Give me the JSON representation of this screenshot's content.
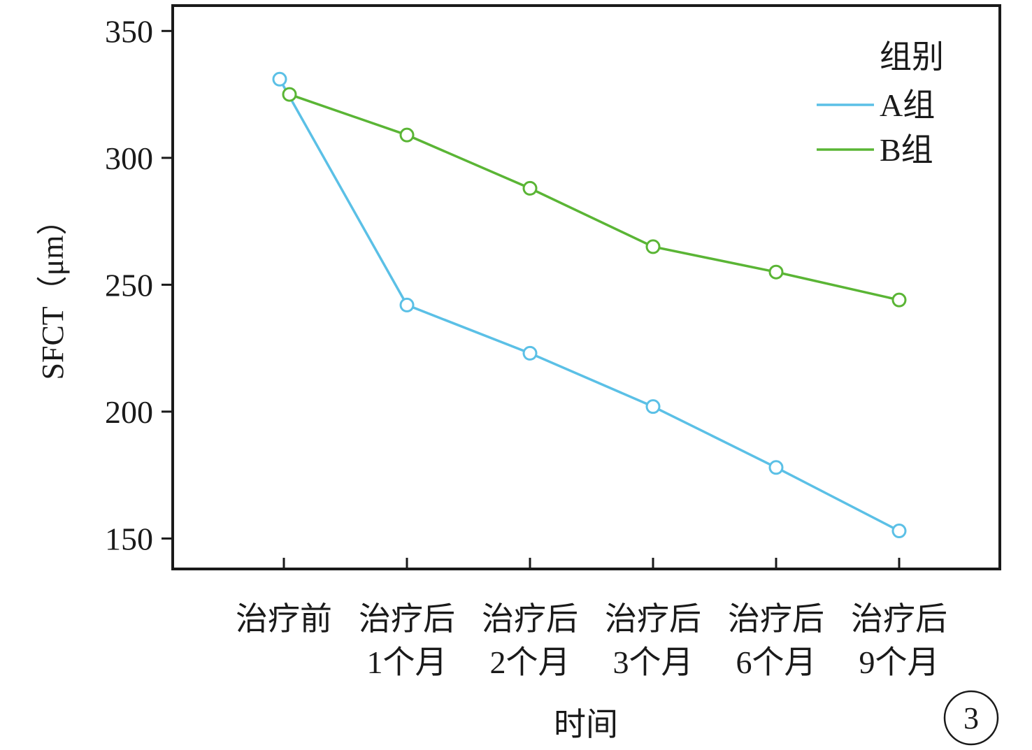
{
  "chart_data": {
    "type": "line",
    "title": "",
    "xlabel": "时间",
    "ylabel": "SFCT（μm）",
    "categories": [
      [
        "治疗前"
      ],
      [
        "治疗后",
        "1个月"
      ],
      [
        "治疗后",
        "2个月"
      ],
      [
        "治疗后",
        "3个月"
      ],
      [
        "治疗后",
        "6个月"
      ],
      [
        "治疗后",
        "9个月"
      ]
    ],
    "ylim": [
      138,
      360
    ],
    "yticks": [
      150,
      200,
      250,
      300,
      350
    ],
    "grid": false,
    "legend": {
      "title": "组别",
      "placement": "top-right"
    },
    "series": [
      {
        "name": "A组",
        "color": "#5bc0e6",
        "values": [
          331,
          242,
          223,
          202,
          178,
          153
        ]
      },
      {
        "name": "B组",
        "color": "#5ab535",
        "values": [
          325,
          309,
          288,
          265,
          255,
          244
        ]
      }
    ]
  },
  "panel_label": "3",
  "colors": {
    "axis": "#1a1a1a",
    "text": "#1a1a1a"
  }
}
